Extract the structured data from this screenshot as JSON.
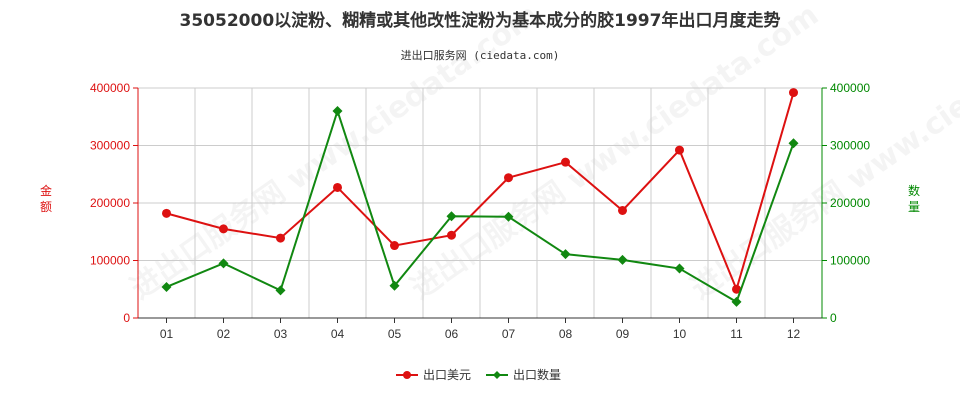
{
  "title": "35052000以淀粉、糊精或其他改性淀粉为基本成分的胶1997年出口月度走势",
  "subtitle": "进出口服务网 (ciedata.com)",
  "watermark": "进出口服务网 www.ciedata.com",
  "colors": {
    "left_axis": "#dd1111",
    "right_axis": "#008800",
    "grid": "#cccccc",
    "axis": "#333333"
  },
  "chart_data": {
    "type": "line",
    "categories": [
      "01",
      "02",
      "03",
      "04",
      "05",
      "06",
      "07",
      "08",
      "09",
      "10",
      "11",
      "12"
    ],
    "y_left": {
      "label": "金额",
      "ylim": [
        0,
        400000
      ],
      "ticks": [
        0,
        100000,
        200000,
        300000,
        400000
      ]
    },
    "y_right": {
      "label": "数量",
      "ylim": [
        0,
        400000
      ],
      "ticks": [
        0,
        100000,
        200000,
        300000,
        400000
      ]
    },
    "grid": true,
    "legend_position": "bottom-center",
    "series": [
      {
        "name": "出口美元",
        "axis": "left",
        "color": "#dd1111",
        "marker": "circle",
        "values": [
          182000,
          155000,
          139000,
          227000,
          126000,
          144000,
          244000,
          271000,
          187000,
          292000,
          50000,
          392000
        ]
      },
      {
        "name": "出口数量",
        "axis": "right",
        "color": "#118811",
        "marker": "diamond",
        "values": [
          54000,
          95000,
          48000,
          360000,
          56000,
          177000,
          176000,
          111000,
          101000,
          86000,
          28000,
          304000
        ]
      }
    ]
  }
}
